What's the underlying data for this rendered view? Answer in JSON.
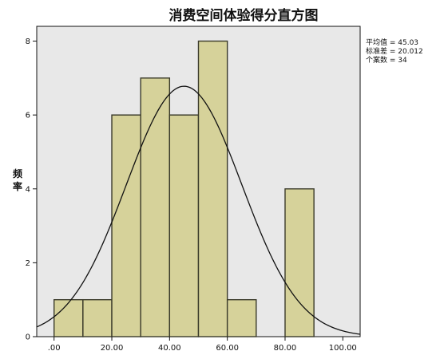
{
  "chart_data": {
    "type": "bar",
    "title": "消费空间体验得分直方图",
    "xlabel": "",
    "ylabel": "频率",
    "xlim": [
      -6,
      106
    ],
    "ylim": [
      0,
      8.4
    ],
    "x_ticks": [
      ".00",
      "20.00",
      "40.00",
      "60.00",
      "80.00",
      "100.00"
    ],
    "x_tick_values": [
      0,
      20,
      40,
      60,
      80,
      100
    ],
    "y_ticks": [
      "0",
      "2",
      "4",
      "6",
      "8"
    ],
    "y_tick_values": [
      0,
      2,
      4,
      6,
      8
    ],
    "bin_width": 10,
    "bins": [
      {
        "start": 0,
        "end": 10,
        "count": 1
      },
      {
        "start": 10,
        "end": 20,
        "count": 1
      },
      {
        "start": 20,
        "end": 30,
        "count": 6
      },
      {
        "start": 30,
        "end": 40,
        "count": 7
      },
      {
        "start": 40,
        "end": 50,
        "count": 6
      },
      {
        "start": 50,
        "end": 60,
        "count": 8
      },
      {
        "start": 60,
        "end": 70,
        "count": 1
      },
      {
        "start": 70,
        "end": 80,
        "count": 0
      },
      {
        "start": 80,
        "end": 90,
        "count": 4
      }
    ],
    "normal_curve": {
      "mean": 45.03,
      "std": 20.012,
      "n": 34
    },
    "stats_text": {
      "mean": "平均值 = 45.03",
      "std": "标准差 = 20.012",
      "n": "个案数 = 34"
    },
    "grid": false,
    "legend": "right",
    "colors": {
      "bar_fill": "#d6d29a",
      "bar_stroke": "#3a3a2a",
      "plot_bg": "#e8e8e8",
      "curve": "#111111"
    }
  }
}
